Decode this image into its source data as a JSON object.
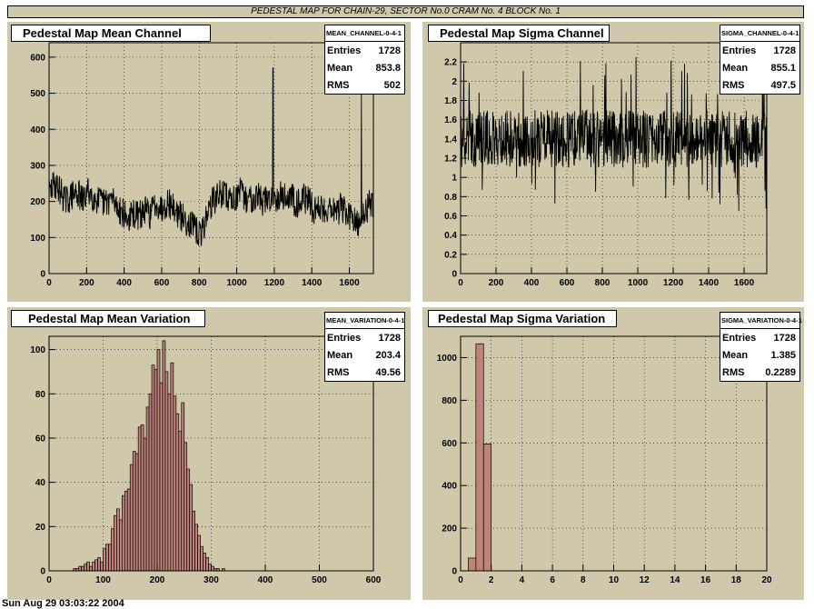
{
  "banner": "PEDESTAL MAP FOR CHAIN-29, SECTOR No.0 CRAM No. 4 BLOCK No. 1",
  "footer": "Sun Aug 29 03:03:22 2004",
  "panels": [
    {
      "title": "Pedestal Map Mean Channel",
      "stats": {
        "name": "MEAN_CHANNEL-0-4-1",
        "rows": [
          [
            "Entries",
            "1728"
          ],
          [
            "Mean",
            "853.8"
          ],
          [
            "RMS",
            "502"
          ]
        ]
      }
    },
    {
      "title": "Pedestal Map Sigma Channel",
      "stats": {
        "name": "SIGMA_CHANNEL-0-4-1",
        "rows": [
          [
            "Entries",
            "1728"
          ],
          [
            "Mean",
            "855.1"
          ],
          [
            "RMS",
            "497.5"
          ]
        ]
      }
    },
    {
      "title": "Pedestal Map Mean Variation",
      "stats": {
        "name": "MEAN_VARIATION-0-4-1",
        "rows": [
          [
            "Entries",
            "1728"
          ],
          [
            "Mean",
            "203.4"
          ],
          [
            "RMS",
            "49.56"
          ]
        ]
      }
    },
    {
      "title": "Pedestal Map Sigma Variation",
      "stats": {
        "name": "SIGMA_VARIATION-0-4-1",
        "rows": [
          [
            "Entries",
            "1728"
          ],
          [
            "Mean",
            "1.385"
          ],
          [
            "RMS",
            "0.2289"
          ]
        ]
      }
    }
  ],
  "colors": {
    "pad": "#cfc8aa",
    "fill": "#c0837a",
    "line": "#000000"
  },
  "chart_data": [
    {
      "type": "line",
      "title": "Pedestal Map Mean Channel",
      "xlim": [
        0,
        1728
      ],
      "ylim": [
        0,
        640
      ],
      "xticks": [
        0,
        200,
        400,
        600,
        800,
        1000,
        1200,
        1400,
        1600
      ],
      "yticks": [
        0,
        100,
        200,
        300,
        400,
        500,
        600
      ],
      "grid": true,
      "x": [
        0,
        30,
        60,
        90,
        120,
        150,
        180,
        210,
        240,
        270,
        300,
        330,
        360,
        390,
        420,
        450,
        480,
        510,
        540,
        570,
        600,
        630,
        660,
        690,
        720,
        750,
        780,
        810,
        840,
        870,
        900,
        930,
        960,
        990,
        1020,
        1050,
        1080,
        1110,
        1140,
        1170,
        1200,
        1230,
        1260,
        1290,
        1320,
        1350,
        1380,
        1410,
        1440,
        1470,
        1500,
        1530,
        1560,
        1590,
        1620,
        1650,
        1680,
        1710
      ],
      "y": [
        220,
        250,
        230,
        200,
        215,
        225,
        200,
        230,
        210,
        200,
        195,
        210,
        190,
        170,
        150,
        165,
        160,
        175,
        165,
        200,
        180,
        200,
        185,
        165,
        150,
        140,
        120,
        105,
        165,
        200,
        215,
        225,
        205,
        210,
        225,
        205,
        210,
        220,
        200,
        205,
        210,
        220,
        210,
        215,
        195,
        210,
        205,
        175,
        185,
        175,
        190,
        170,
        185,
        165,
        145,
        130,
        170,
        195
      ],
      "spikes": [
        {
          "x": 1193,
          "y": 570
        },
        {
          "x": 1664,
          "y": 500
        }
      ]
    },
    {
      "type": "line",
      "title": "Pedestal Map Sigma Channel",
      "xlim": [
        0,
        1728
      ],
      "ylim": [
        0,
        2.4
      ],
      "xticks": [
        0,
        200,
        400,
        600,
        800,
        1000,
        1200,
        1400,
        1600
      ],
      "yticks": [
        0,
        0.2,
        0.4,
        0.6,
        0.8,
        1,
        1.2,
        1.4,
        1.6,
        1.8,
        2,
        2.2
      ],
      "grid": true,
      "baseline": 1.4,
      "band": [
        1.15,
        1.65
      ],
      "min_observed": 0.65,
      "max_observed": 2.25
    },
    {
      "type": "bar",
      "title": "Pedestal Map Mean Variation",
      "xlim": [
        0,
        600
      ],
      "ylim": [
        0,
        106
      ],
      "xticks": [
        0,
        100,
        200,
        300,
        400,
        500,
        600
      ],
      "yticks": [
        0,
        20,
        40,
        60,
        80,
        100
      ],
      "grid": true,
      "bin_width": 5,
      "bin_start": 45,
      "values": [
        1,
        1,
        2,
        2,
        3,
        4,
        2,
        4,
        5,
        6,
        4,
        10,
        12,
        12,
        19,
        25,
        28,
        23,
        34,
        36,
        37,
        48,
        54,
        53,
        65,
        66,
        60,
        74,
        80,
        93,
        91,
        100,
        85,
        104,
        90,
        80,
        94,
        79,
        71,
        63,
        76,
        58,
        46,
        39,
        27,
        21,
        16,
        11,
        8,
        6,
        3,
        2,
        1,
        1,
        0,
        1
      ]
    },
    {
      "type": "bar",
      "title": "Pedestal Map Sigma Variation",
      "xlim": [
        0,
        20
      ],
      "ylim": [
        0,
        1100
      ],
      "xticks": [
        0,
        2,
        4,
        6,
        8,
        10,
        12,
        14,
        16,
        18,
        20
      ],
      "yticks": [
        0,
        200,
        400,
        600,
        800,
        1000
      ],
      "grid": true,
      "bin_width": 0.5,
      "bin_start": 0.5,
      "values": [
        60,
        1065,
        595
      ]
    }
  ]
}
